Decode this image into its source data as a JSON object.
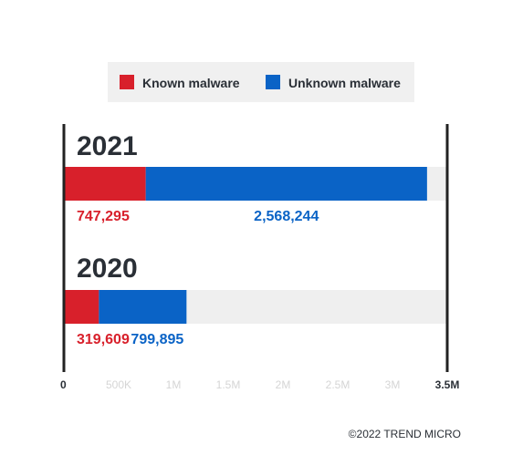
{
  "chart_data": {
    "type": "bar",
    "orientation": "horizontal",
    "stacked": true,
    "categories": [
      "2021",
      "2020"
    ],
    "series": [
      {
        "name": "Known malware",
        "values": [
          747295,
          319609
        ]
      },
      {
        "name": "Unknown malware",
        "values": [
          2568244,
          799895
        ]
      }
    ],
    "xlim": [
      0,
      3500000
    ],
    "x_ticks": [
      "0",
      "500K",
      "1M",
      "1.5M",
      "2M",
      "2.5M",
      "3M",
      "3.5M"
    ],
    "legend_position": "top",
    "grid": false
  },
  "colors": {
    "known": "#d8202b",
    "unknown": "#0a63c6",
    "track": "#efefef",
    "axis": "#222222",
    "legend_bg": "#f0f0f0",
    "text_dark": "#2a2f36",
    "tick_faded": "#d5d5d5"
  },
  "copyright": "©2022 TREND MICRO"
}
